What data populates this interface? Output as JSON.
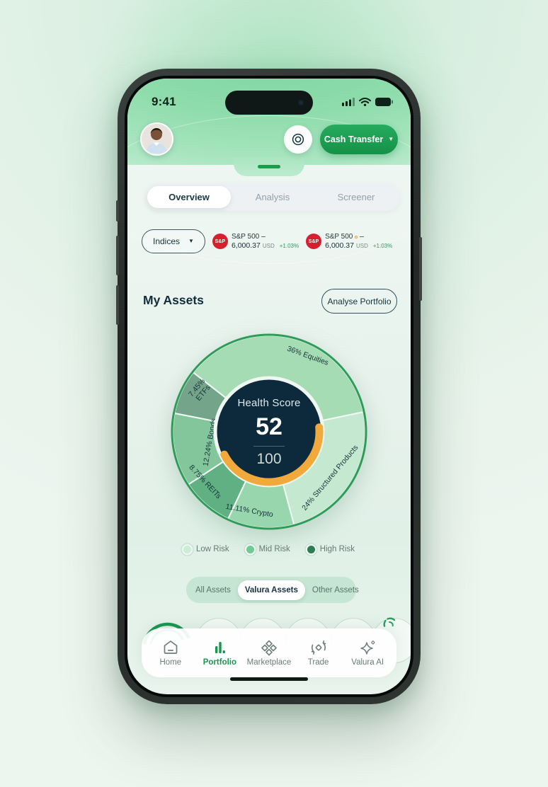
{
  "theme": {
    "accent_green": "#18A155",
    "badge_red": "#D6202F",
    "positive_green": "#1FA65A"
  },
  "status_bar": {
    "time": "9:41"
  },
  "header": {
    "cash_transfer_label": "Cash Transfer"
  },
  "tabs": {
    "active_index": 0,
    "items": [
      {
        "label": "Overview"
      },
      {
        "label": "Analysis"
      },
      {
        "label": "Screener"
      }
    ]
  },
  "indices": {
    "selector_label": "Indices",
    "tickers": [
      {
        "badge": "S&P",
        "name": "S&P 500",
        "value": "6,000.37",
        "currency": "USD",
        "change": "+1.03%"
      },
      {
        "badge": "S&P",
        "name": "S&P 500",
        "value": "6,000.37",
        "currency": "USD",
        "change": "+1.03%"
      }
    ]
  },
  "assets_section": {
    "title": "My Assets",
    "analyse_button_label": "Analyse Portfolio"
  },
  "chart_data": {
    "type": "donut",
    "title": "My Assets allocation",
    "start_angle": -52,
    "outer_stroke": "#2E9C58",
    "separator": "#F2FAF5",
    "center_bg": "#0D2A3C",
    "center": {
      "title": "Health Score",
      "score": "52",
      "total": "100"
    },
    "gauge": {
      "color": "#F1A93C",
      "arc_start": 85,
      "arc_end": 243
    },
    "segments": [
      {
        "name": "Equities",
        "value": 36,
        "label": "36% Equities",
        "color": "#A6DCB4",
        "label_angle": 27,
        "label_radius": 0.89,
        "label_rotation": 20
      },
      {
        "name": "Structured Products",
        "value": 24,
        "label": "24%  Structured Products",
        "color": "#C5E9D0",
        "label_angle": 127,
        "label_radius": 0.79,
        "label_rotation": -50
      },
      {
        "name": "Crypto",
        "value": 11.11,
        "label": "11.11% Crypto",
        "color": "#98D6AE",
        "label_angle": 194,
        "label_radius": 0.84,
        "label_rotation": 10
      },
      {
        "name": "REITs",
        "value": 8.75,
        "label": "8.75% REITs",
        "color": "#61B083",
        "label_angle": 232,
        "label_radius": 0.84,
        "label_rotation": 47
      },
      {
        "name": "Bonds",
        "value": 12.24,
        "label": "12.24% Bonds",
        "color": "#84C69C",
        "label_angle": 260,
        "label_radius": 0.63,
        "label_rotation": -80
      },
      {
        "name": "ETFs",
        "value": 7.45,
        "label": "7.45%\nETFs",
        "color": "#74A58A",
        "label_angle": 301,
        "label_radius": 0.84,
        "label_rotation": -50
      }
    ]
  },
  "risk_legend": {
    "items": [
      {
        "label": "Low Risk",
        "color": "#CBEDD8"
      },
      {
        "label": "Mid Risk",
        "color": "#6FCB96"
      },
      {
        "label": "High Risk",
        "color": "#2E7D52"
      }
    ]
  },
  "asset_filter": {
    "active_index": 1,
    "items": [
      {
        "label": "All Assets"
      },
      {
        "label": "Valura Assets"
      },
      {
        "label": "Other Assets"
      }
    ]
  },
  "bottom_nav": {
    "active_index": 1,
    "items": [
      {
        "label": "Home"
      },
      {
        "label": "Portfolio"
      },
      {
        "label": "Marketplace"
      },
      {
        "label": "Trade"
      },
      {
        "label": "Valura AI"
      }
    ]
  }
}
